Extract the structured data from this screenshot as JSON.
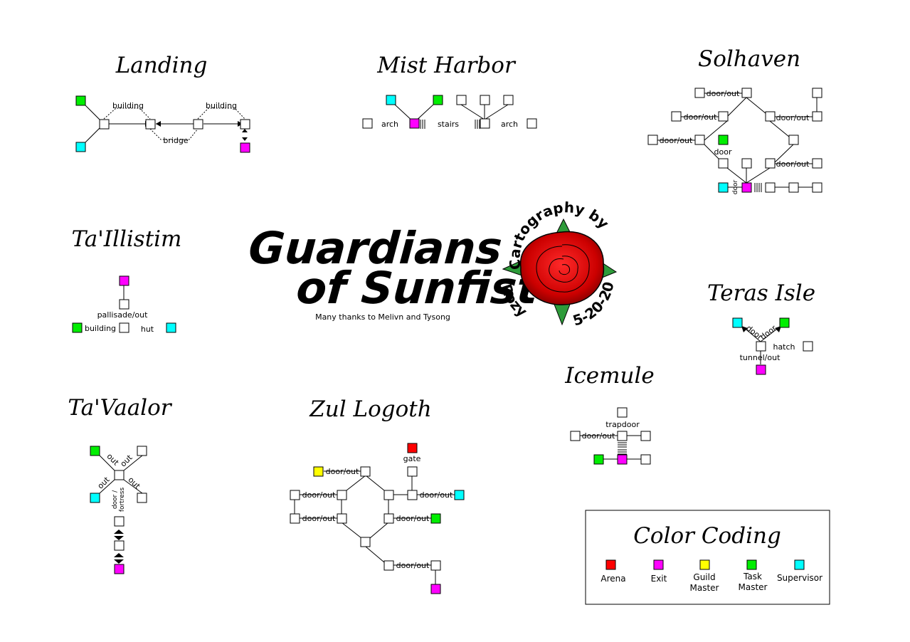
{
  "colors": {
    "room": "#ffffff",
    "arena": "#ff0000",
    "exit": "#ff00ff",
    "guild": "#ffff00",
    "task": "#00ee00",
    "supervisor": "#00ffff",
    "rose": "#cc0000",
    "leaf": "#2e9b3a"
  },
  "header": {
    "title_line1": "Guardians",
    "title_line2": "of Sunfist",
    "thanks": "Many thanks to Melivn and Tysong"
  },
  "stamp": {
    "arc_top": "Cartography by",
    "arc_left": "Rozy",
    "arc_right": "5-20-20"
  },
  "areas": {
    "landing": {
      "title": "Landing",
      "labels": [
        "building",
        "building",
        "bridge"
      ]
    },
    "mist_harbor": {
      "title": "Mist Harbor",
      "labels": [
        "arch",
        "stairs",
        "arch"
      ]
    },
    "solhaven": {
      "title": "Solhaven",
      "labels": [
        "door/out",
        "door/out",
        "door/out",
        "door/out",
        "door/out",
        "door",
        "door"
      ]
    },
    "tallistim": {
      "title": "Ta'Illistim",
      "labels": [
        "pallisade/out",
        "building",
        "hut"
      ]
    },
    "teras": {
      "title": "Teras Isle",
      "labels": [
        "door",
        "door",
        "hatch",
        "tunnel/out"
      ]
    },
    "icemule": {
      "title": "Icemule",
      "labels": [
        "trapdoor",
        "door/out"
      ]
    },
    "tavaalor": {
      "title": "Ta'Vaalor",
      "labels": [
        "out",
        "out",
        "out",
        "out",
        "door /",
        "fortress"
      ]
    },
    "zul": {
      "title": "Zul Logoth",
      "labels": [
        "gate",
        "door/out",
        "door/out",
        "door/out",
        "door/out",
        "door/out",
        "door/out"
      ]
    }
  },
  "legend": {
    "title": "Color Coding",
    "items": [
      {
        "key": "arena",
        "line1": "Arena",
        "line2": ""
      },
      {
        "key": "exit",
        "line1": "Exit",
        "line2": ""
      },
      {
        "key": "guild",
        "line1": "Guild",
        "line2": "Master"
      },
      {
        "key": "task",
        "line1": "Task",
        "line2": "Master"
      },
      {
        "key": "supervisor",
        "line1": "Supervisor",
        "line2": ""
      }
    ]
  }
}
